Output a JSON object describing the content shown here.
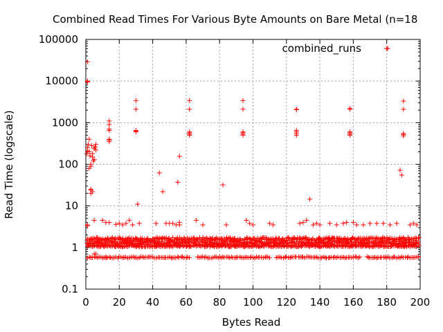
{
  "chart_data": {
    "type": "scatter",
    "title": "Combined Read Times For Various Byte Amounts on Bare Metal (n=18",
    "xlabel": "Bytes Read",
    "ylabel": "Read Time (logscale)",
    "xlim": [
      0,
      200
    ],
    "ylim": [
      0.1,
      100000
    ],
    "yscale": "log",
    "grid": true,
    "legend_position": "top-right",
    "x_ticks": [
      "0",
      "20",
      "40",
      "60",
      "80",
      "100",
      "120",
      "140",
      "160",
      "180",
      "200"
    ],
    "y_ticks": [
      "0.1",
      "1",
      "10",
      "100",
      "1000",
      "10000",
      "100000"
    ],
    "marker": "plus",
    "series_color": "#ff0000",
    "series": [
      {
        "name": "combined_runs",
        "bands": [
          {
            "y": 1.6,
            "jitter": 0.09
          },
          {
            "y": 1.3,
            "jitter": 0.08
          },
          {
            "y": 1.1,
            "jitter": 0.06
          },
          {
            "y": 0.58,
            "jitter": 0.04
          }
        ],
        "points": [
          [
            1,
            29000
          ],
          [
            1,
            10000
          ],
          [
            1,
            9500
          ],
          [
            1,
            3.5
          ],
          [
            1,
            3.3
          ],
          [
            0.5,
            180
          ],
          [
            1,
            210
          ],
          [
            1,
            250
          ],
          [
            1.5,
            300
          ],
          [
            2,
            200
          ],
          [
            2,
            400
          ],
          [
            2.5,
            160
          ],
          [
            3,
            100
          ],
          [
            3,
            90
          ],
          [
            2,
            80
          ],
          [
            4,
            180
          ],
          [
            4,
            150
          ],
          [
            4.5,
            120
          ],
          [
            5,
            130
          ],
          [
            5,
            240
          ],
          [
            6,
            220
          ],
          [
            6,
            300
          ],
          [
            5.5,
            260
          ],
          [
            3.5,
            280
          ],
          [
            3,
            25
          ],
          [
            3,
            24
          ],
          [
            3,
            20
          ],
          [
            4,
            22
          ],
          [
            5,
            4.5
          ],
          [
            5,
            0.7
          ],
          [
            6,
            0.7
          ],
          [
            10,
            4.5
          ],
          [
            12,
            4
          ],
          [
            14,
            1100
          ],
          [
            14,
            900
          ],
          [
            14,
            700
          ],
          [
            14,
            650
          ],
          [
            14,
            400
          ],
          [
            14,
            380
          ],
          [
            14,
            350
          ],
          [
            14,
            4.0
          ],
          [
            12,
            0.6
          ],
          [
            18,
            3.6
          ],
          [
            20,
            3.8
          ],
          [
            22,
            3.5
          ],
          [
            24,
            3.8
          ],
          [
            26,
            4.5
          ],
          [
            28,
            3.5
          ],
          [
            30,
            3400
          ],
          [
            30,
            2100
          ],
          [
            30,
            650
          ],
          [
            30,
            620
          ],
          [
            30,
            600
          ],
          [
            31,
            11
          ],
          [
            32,
            3.8
          ],
          [
            44,
            62
          ],
          [
            46,
            22
          ],
          [
            42,
            3.8
          ],
          [
            48,
            3.8
          ],
          [
            50,
            3.8
          ],
          [
            52,
            3.8
          ],
          [
            54,
            3.5
          ],
          [
            55,
            37
          ],
          [
            56,
            155
          ],
          [
            56,
            4
          ],
          [
            56,
            3.5
          ],
          [
            62,
            3400
          ],
          [
            62,
            2100
          ],
          [
            62,
            600
          ],
          [
            62,
            570
          ],
          [
            62,
            530
          ],
          [
            62,
            500
          ],
          [
            66,
            4.5
          ],
          [
            70,
            3.5
          ],
          [
            82,
            32
          ],
          [
            84,
            3.5
          ],
          [
            94,
            3400
          ],
          [
            94,
            2100
          ],
          [
            94,
            600
          ],
          [
            94,
            570
          ],
          [
            94,
            530
          ],
          [
            94,
            500
          ],
          [
            96,
            4.5
          ],
          [
            98,
            3.8
          ],
          [
            100,
            3.5
          ],
          [
            110,
            3.8
          ],
          [
            112,
            3.5
          ],
          [
            126,
            2100
          ],
          [
            126,
            2050
          ],
          [
            126,
            650
          ],
          [
            126,
            600
          ],
          [
            126,
            550
          ],
          [
            126,
            500
          ],
          [
            128,
            3.8
          ],
          [
            130,
            4
          ],
          [
            132,
            4.5
          ],
          [
            134,
            14.5
          ],
          [
            136,
            3.5
          ],
          [
            138,
            3.8
          ],
          [
            140,
            3.5
          ],
          [
            146,
            3.8
          ],
          [
            150,
            3.5
          ],
          [
            154,
            3.8
          ],
          [
            156,
            4
          ],
          [
            158,
            2200
          ],
          [
            158,
            2100
          ],
          [
            158,
            600
          ],
          [
            158,
            570
          ],
          [
            158,
            530
          ],
          [
            158,
            500
          ],
          [
            160,
            4
          ],
          [
            162,
            3.5
          ],
          [
            166,
            3.5
          ],
          [
            170,
            3.8
          ],
          [
            174,
            3.8
          ],
          [
            178,
            3.8
          ],
          [
            180,
            60000
          ],
          [
            182,
            3.5
          ],
          [
            186,
            3.8
          ],
          [
            188,
            72
          ],
          [
            189,
            55
          ],
          [
            190,
            3300
          ],
          [
            190,
            2100
          ],
          [
            190,
            550
          ],
          [
            190,
            520
          ],
          [
            190,
            480
          ],
          [
            194,
            3.5
          ],
          [
            196,
            3.8
          ],
          [
            198,
            3.5
          ],
          [
            199,
            0.6
          ]
        ]
      }
    ]
  }
}
